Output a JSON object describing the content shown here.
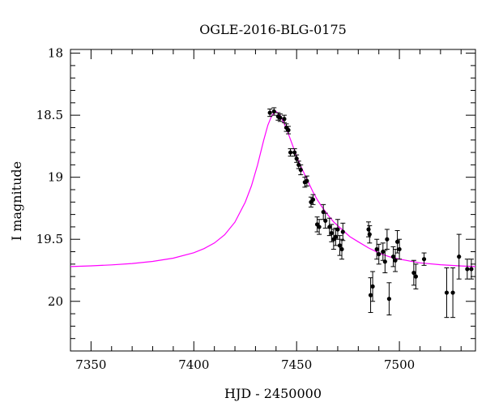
{
  "chart_data": {
    "type": "scatter",
    "title": "OGLE-2016-BLG-0175",
    "xlabel": "HJD - 2450000",
    "ylabel": "I magnitude",
    "xlim": [
      7340,
      7537
    ],
    "ylim": [
      20.4,
      17.97
    ],
    "y_inverted": true,
    "x_ticks": [
      7350,
      7400,
      7450,
      7500
    ],
    "y_ticks": [
      18,
      18.5,
      19,
      19.5,
      20
    ],
    "x_tick_labels": [
      "7350",
      "7400",
      "7450",
      "7500"
    ],
    "y_tick_labels": [
      "18",
      "18.5",
      "19",
      "19.5",
      "20"
    ],
    "x_minor_step": 10,
    "y_minor_step": 0.1,
    "grid": false,
    "series": [
      {
        "kind": "model",
        "color": "#ff00ff",
        "points": [
          [
            7340,
            19.72
          ],
          [
            7350,
            19.714
          ],
          [
            7360,
            19.706
          ],
          [
            7370,
            19.695
          ],
          [
            7380,
            19.678
          ],
          [
            7390,
            19.652
          ],
          [
            7400,
            19.608
          ],
          [
            7405,
            19.575
          ],
          [
            7410,
            19.53
          ],
          [
            7415,
            19.463
          ],
          [
            7420,
            19.362
          ],
          [
            7425,
            19.202
          ],
          [
            7428,
            19.07
          ],
          [
            7431,
            18.9
          ],
          [
            7434,
            18.7
          ],
          [
            7436,
            18.58
          ],
          [
            7438,
            18.5
          ],
          [
            7440,
            18.47
          ],
          [
            7442,
            18.5
          ],
          [
            7444,
            18.57
          ],
          [
            7446,
            18.65
          ],
          [
            7448,
            18.74
          ],
          [
            7450,
            18.83
          ],
          [
            7452,
            18.91
          ],
          [
            7454,
            18.98
          ],
          [
            7456,
            19.05
          ],
          [
            7458,
            19.12
          ],
          [
            7460,
            19.18
          ],
          [
            7462,
            19.23
          ],
          [
            7465,
            19.3
          ],
          [
            7468,
            19.36
          ],
          [
            7472,
            19.42
          ],
          [
            7476,
            19.48
          ],
          [
            7480,
            19.52
          ],
          [
            7485,
            19.57
          ],
          [
            7490,
            19.61
          ],
          [
            7495,
            19.64
          ],
          [
            7500,
            19.66
          ],
          [
            7510,
            19.69
          ],
          [
            7520,
            19.705
          ],
          [
            7530,
            19.715
          ],
          [
            7537,
            19.72
          ]
        ]
      },
      {
        "kind": "data",
        "color": "#000000",
        "points": [
          [
            7437,
            18.48,
            0.03
          ],
          [
            7439,
            18.47,
            0.03
          ],
          [
            7441,
            18.51,
            0.03
          ],
          [
            7442,
            18.52,
            0.03
          ],
          [
            7444,
            18.53,
            0.03
          ],
          [
            7445,
            18.6,
            0.03
          ],
          [
            7446,
            18.62,
            0.03
          ],
          [
            7447,
            18.8,
            0.03
          ],
          [
            7449,
            18.8,
            0.03
          ],
          [
            7450,
            18.85,
            0.03
          ],
          [
            7451,
            18.9,
            0.03
          ],
          [
            7452,
            18.94,
            0.04
          ],
          [
            7454,
            19.04,
            0.04
          ],
          [
            7455,
            19.03,
            0.04
          ],
          [
            7457,
            19.2,
            0.04
          ],
          [
            7458,
            19.18,
            0.04
          ],
          [
            7460,
            19.38,
            0.06
          ],
          [
            7461,
            19.4,
            0.06
          ],
          [
            7463,
            19.28,
            0.06
          ],
          [
            7464,
            19.35,
            0.06
          ],
          [
            7466,
            19.4,
            0.07
          ],
          [
            7467,
            19.45,
            0.07
          ],
          [
            7468,
            19.5,
            0.08
          ],
          [
            7469,
            19.48,
            0.07
          ],
          [
            7470,
            19.42,
            0.08
          ],
          [
            7471,
            19.55,
            0.08
          ],
          [
            7472,
            19.58,
            0.08
          ],
          [
            7472.5,
            19.44,
            0.07
          ],
          [
            7485,
            19.42,
            0.06
          ],
          [
            7485.5,
            19.46,
            0.07
          ],
          [
            7486,
            19.95,
            0.14
          ],
          [
            7487,
            19.88,
            0.12
          ],
          [
            7489,
            19.58,
            0.08
          ],
          [
            7490,
            19.62,
            0.08
          ],
          [
            7492,
            19.6,
            0.07
          ],
          [
            7493,
            19.68,
            0.09
          ],
          [
            7494,
            19.5,
            0.08
          ],
          [
            7495,
            19.98,
            0.13
          ],
          [
            7497,
            19.64,
            0.08
          ],
          [
            7498,
            19.67,
            0.09
          ],
          [
            7499,
            19.52,
            0.09
          ],
          [
            7500,
            19.58,
            0.08
          ],
          [
            7507,
            19.77,
            0.1
          ],
          [
            7508,
            19.8,
            0.1
          ],
          [
            7512,
            19.66,
            0.05
          ],
          [
            7523,
            19.93,
            0.2
          ],
          [
            7526,
            19.93,
            0.2
          ],
          [
            7529,
            19.64,
            0.18
          ],
          [
            7533,
            19.74,
            0.08
          ],
          [
            7535,
            19.74,
            0.08
          ]
        ]
      }
    ]
  }
}
